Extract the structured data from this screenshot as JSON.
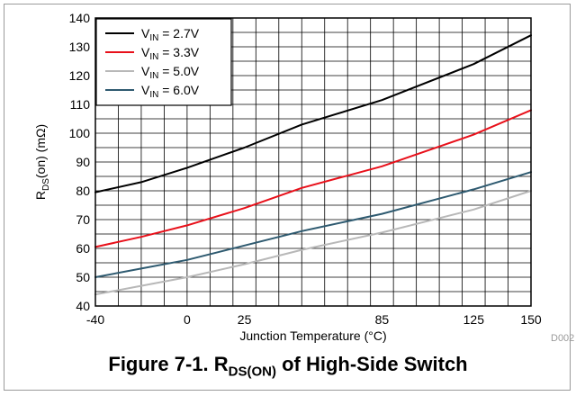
{
  "caption": {
    "prefix": "Figure 7-1. R",
    "sub": "DS(ON)",
    "suffix": " of High-Side Switch"
  },
  "figure_id": "D002",
  "chart_data": {
    "type": "line",
    "xlabel": "Junction Temperature (°C)",
    "ylabel_main": "R",
    "ylabel_sub": "DS",
    "ylabel_rest": "(on) (mΩ)",
    "xlim": [
      -40,
      150
    ],
    "ylim": [
      40,
      140
    ],
    "x_ticks": [
      -40,
      0,
      25,
      85,
      125,
      150
    ],
    "y_ticks": [
      40,
      50,
      60,
      70,
      80,
      90,
      100,
      110,
      120,
      130,
      140
    ],
    "grid": true,
    "legend_position": "top-left",
    "series": [
      {
        "name_main": "V",
        "name_sub": "IN",
        "name_rest": " = 2.7V",
        "color": "#000000",
        "x": [
          -40,
          -20,
          0,
          25,
          50,
          85,
          125,
          150
        ],
        "y": [
          79.5,
          83,
          88,
          95,
          103,
          111.5,
          124,
          134
        ]
      },
      {
        "name_main": "V",
        "name_sub": "IN",
        "name_rest": " = 3.3V",
        "color": "#e8101a",
        "x": [
          -40,
          -20,
          0,
          25,
          50,
          85,
          125,
          150
        ],
        "y": [
          60.5,
          64,
          68,
          74,
          81,
          88.5,
          99.5,
          108
        ]
      },
      {
        "name_main": "V",
        "name_sub": "IN",
        "name_rest": " = 5.0V",
        "color": "#b8b8b8",
        "x": [
          -40,
          -20,
          0,
          25,
          50,
          85,
          125,
          150
        ],
        "y": [
          44,
          47,
          50,
          54.5,
          59.5,
          65.5,
          73.5,
          80
        ]
      },
      {
        "name_main": "V",
        "name_sub": "IN",
        "name_rest": " = 6.0V",
        "color": "#2e5a70",
        "x": [
          -40,
          -20,
          0,
          25,
          50,
          85,
          125,
          150
        ],
        "y": [
          50,
          53,
          56,
          61,
          66,
          72,
          80.5,
          86.5
        ]
      }
    ]
  }
}
